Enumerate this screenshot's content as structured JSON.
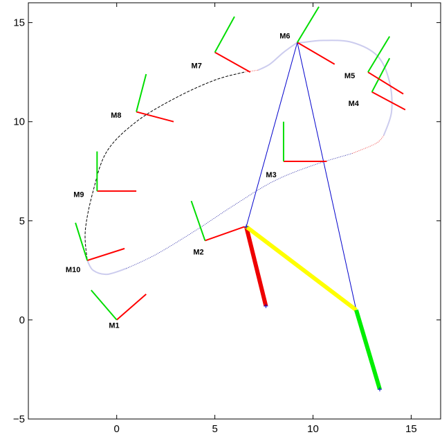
{
  "chart_data": {
    "type": "line",
    "title": "",
    "xlabel": "",
    "ylabel": "",
    "xlim": [
      -4.5,
      16.5
    ],
    "ylim": [
      -5,
      16
    ],
    "x_ticks": [
      0,
      5,
      10,
      15
    ],
    "y_ticks": [
      -5,
      0,
      5,
      10,
      15
    ],
    "x_tick_labels": [
      "0",
      "5",
      "10",
      "15"
    ],
    "y_tick_labels": [
      "−5",
      "0",
      "5",
      "10",
      "15"
    ],
    "grid": false,
    "legend": "none",
    "colors": {
      "frame_x": "#ff0000",
      "frame_y": "#00dd00",
      "link1": "#ee0000",
      "link2": "#ffff00",
      "link3": "#00ee00",
      "rays": "#0000cc",
      "path_black": "#000000",
      "path_blue": "#3333aa",
      "path_light": "#ccccee",
      "path_red": "#ee4444"
    },
    "frames": [
      {
        "name": "M1",
        "origin": [
          0.0,
          0.0
        ],
        "x_axis": [
          1.5,
          1.3
        ],
        "y_axis": [
          -1.3,
          1.5
        ],
        "label_at": [
          -0.4,
          -0.4
        ]
      },
      {
        "name": "M2",
        "origin": [
          4.5,
          4.0
        ],
        "x_axis": [
          2.0,
          0.7
        ],
        "y_axis": [
          -0.7,
          2.0
        ],
        "label_at": [
          3.9,
          3.3
        ]
      },
      {
        "name": "M3",
        "origin": [
          8.5,
          8.0
        ],
        "x_axis": [
          2.2,
          0.0
        ],
        "y_axis": [
          0.0,
          2.0
        ],
        "label_at": [
          7.6,
          7.2
        ]
      },
      {
        "name": "M4",
        "origin": [
          13.0,
          11.5
        ],
        "x_axis": [
          1.7,
          -0.9
        ],
        "y_axis": [
          0.9,
          1.7
        ],
        "label_at": [
          11.8,
          10.8
        ]
      },
      {
        "name": "M5",
        "origin": [
          12.8,
          12.5
        ],
        "x_axis": [
          1.8,
          -1.1
        ],
        "y_axis": [
          1.1,
          1.8
        ],
        "label_at": [
          11.6,
          12.2
        ]
      },
      {
        "name": "M6",
        "origin": [
          9.2,
          14.0
        ],
        "x_axis": [
          1.9,
          -1.1
        ],
        "y_axis": [
          1.1,
          1.8
        ],
        "label_at": [
          8.3,
          14.2
        ]
      },
      {
        "name": "M7",
        "origin": [
          5.0,
          13.5
        ],
        "x_axis": [
          1.8,
          -1.0
        ],
        "y_axis": [
          1.0,
          1.8
        ],
        "label_at": [
          3.8,
          12.7
        ]
      },
      {
        "name": "M8",
        "origin": [
          1.0,
          10.5
        ],
        "x_axis": [
          1.9,
          -0.5
        ],
        "y_axis": [
          0.5,
          1.9
        ],
        "label_at": [
          -0.3,
          10.2
        ]
      },
      {
        "name": "M9",
        "origin": [
          -1.0,
          6.5
        ],
        "x_axis": [
          2.0,
          0.0
        ],
        "y_axis": [
          0.0,
          2.0
        ],
        "label_at": [
          -2.2,
          6.2
        ]
      },
      {
        "name": "M10",
        "origin": [
          -1.5,
          3.0
        ],
        "x_axis": [
          1.9,
          0.6
        ],
        "y_axis": [
          -0.6,
          1.9
        ],
        "label_at": [
          -2.6,
          2.4
        ]
      }
    ],
    "path_segments": [
      {
        "style": "light",
        "points": [
          [
            -1.5,
            3.0
          ],
          [
            -1.2,
            2.5
          ],
          [
            -0.5,
            2.3
          ],
          [
            0.5,
            2.6
          ]
        ]
      },
      {
        "style": "blue_dotted",
        "points": [
          [
            0.5,
            2.6
          ],
          [
            2.0,
            3.3
          ],
          [
            4.0,
            4.5
          ],
          [
            6.0,
            5.8
          ],
          [
            8.0,
            7.0
          ],
          [
            10.0,
            7.8
          ],
          [
            12.0,
            8.4
          ]
        ]
      },
      {
        "style": "red_dotted",
        "points": [
          [
            12.0,
            8.4
          ],
          [
            13.2,
            8.9
          ],
          [
            13.6,
            9.3
          ]
        ]
      },
      {
        "style": "light",
        "points": [
          [
            13.6,
            9.3
          ],
          [
            14.0,
            10.5
          ],
          [
            13.9,
            12.0
          ],
          [
            13.3,
            13.3
          ],
          [
            12.0,
            14.0
          ],
          [
            10.5,
            14.1
          ],
          [
            9.5,
            14.0
          ],
          [
            9.2,
            14.0
          ]
        ]
      },
      {
        "style": "light",
        "points": [
          [
            9.2,
            14.0
          ],
          [
            8.5,
            13.5
          ],
          [
            7.8,
            12.9
          ],
          [
            7.2,
            12.6
          ]
        ]
      },
      {
        "style": "red_dotted",
        "points": [
          [
            7.2,
            12.6
          ],
          [
            6.5,
            12.5
          ]
        ]
      },
      {
        "style": "black_dashed",
        "points": [
          [
            6.5,
            12.5
          ],
          [
            5.0,
            12.1
          ],
          [
            3.0,
            11.2
          ],
          [
            1.0,
            10.0
          ],
          [
            -0.5,
            8.5
          ],
          [
            -1.2,
            6.5
          ],
          [
            -1.6,
            4.5
          ],
          [
            -1.5,
            3.0
          ]
        ]
      }
    ],
    "rays": [
      {
        "from": [
          9.2,
          14.0
        ],
        "to": [
          6.6,
          4.7
        ]
      },
      {
        "from": [
          9.2,
          14.0
        ],
        "to": [
          12.2,
          0.5
        ]
      }
    ],
    "links": [
      {
        "name": "link1",
        "from": [
          6.6,
          4.7
        ],
        "to": [
          7.6,
          0.7
        ],
        "color": "link1"
      },
      {
        "name": "link2",
        "from": [
          6.6,
          4.7
        ],
        "to": [
          12.2,
          0.5
        ],
        "color": "link2"
      },
      {
        "name": "link3",
        "from": [
          12.2,
          0.5
        ],
        "to": [
          13.4,
          -3.5
        ],
        "color": "link3"
      }
    ],
    "plus_markers": [
      [
        7.6,
        0.7
      ],
      [
        13.4,
        -3.5
      ],
      [
        6.6,
        4.7
      ]
    ]
  }
}
